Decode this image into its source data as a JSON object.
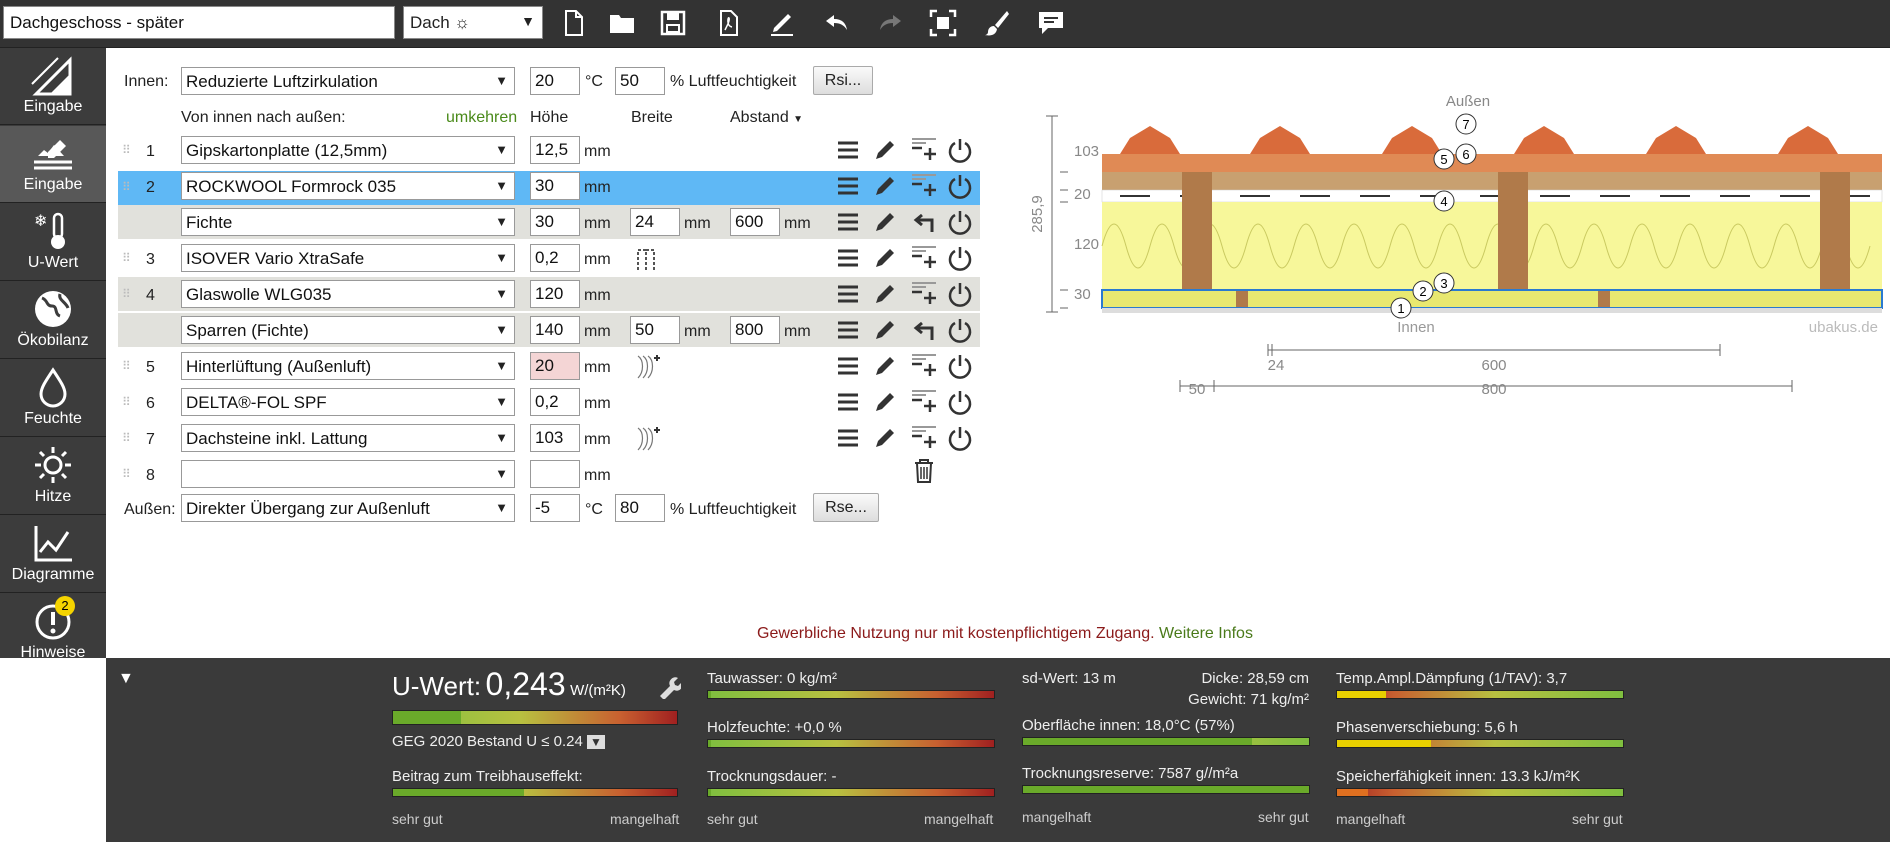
{
  "toolbar": {
    "project_name": "Dachgeschoss - später",
    "view_label": "Dach ☼"
  },
  "sidebar": {
    "items": [
      {
        "label": "Eingabe"
      },
      {
        "label": "Eingabe"
      },
      {
        "label": "U-Wert"
      },
      {
        "label": "Ökobilanz"
      },
      {
        "label": "Feuchte"
      },
      {
        "label": "Hitze"
      },
      {
        "label": "Diagramme"
      },
      {
        "label": "Hinweise",
        "badge": "2"
      }
    ]
  },
  "inner": {
    "label": "Innen:",
    "condition": "Reduzierte Luftzirkulation",
    "temp": "20",
    "temp_unit": "°C",
    "humidity": "50",
    "humidity_label": "% Luftfeuchtigkeit",
    "button": "Rsi..."
  },
  "headers": {
    "direction": "Von innen nach außen:",
    "reverse": "umkehren",
    "height": "Höhe",
    "width": "Breite",
    "distance": "Abstand"
  },
  "layers": [
    {
      "num": "1",
      "material": "Gipskartonplatte (12,5mm)",
      "height": "12,5",
      "unit": "mm"
    },
    {
      "num": "2",
      "material": "ROCKWOOL Formrock 035",
      "height": "30",
      "unit": "mm"
    },
    {
      "num": "",
      "material": "Fichte",
      "height": "30",
      "unit": "mm",
      "width": "24",
      "distance": "600"
    },
    {
      "num": "3",
      "material": "ISOVER Vario XtraSafe",
      "height": "0,2",
      "unit": "mm"
    },
    {
      "num": "4",
      "material": "Glaswolle WLG035",
      "height": "120",
      "unit": "mm"
    },
    {
      "num": "",
      "material": "Sparren (Fichte)",
      "height": "140",
      "unit": "mm",
      "width": "50",
      "distance": "800"
    },
    {
      "num": "5",
      "material": "Hinterlüftung (Außenluft)",
      "height": "20",
      "unit": "mm"
    },
    {
      "num": "6",
      "material": "DELTA®-FOL SPF",
      "height": "0,2",
      "unit": "mm"
    },
    {
      "num": "7",
      "material": "Dachsteine inkl. Lattung",
      "height": "103",
      "unit": "mm"
    },
    {
      "num": "8",
      "material": "",
      "height": "",
      "unit": "mm"
    }
  ],
  "outer": {
    "label": "Außen:",
    "condition": "Direkter Übergang zur Außenluft",
    "temp": "-5",
    "temp_unit": "°C",
    "humidity": "80",
    "humidity_label": "% Luftfeuchtigkeit",
    "button": "Rse..."
  },
  "drawing": {
    "outside": "Außen",
    "inside": "Innen",
    "brand": "ubakus.de",
    "total": "285,9",
    "dims": [
      "103",
      "20",
      "120",
      "30"
    ],
    "width_24": "24",
    "width_600": "600",
    "width_50": "50",
    "width_800": "800",
    "markers": [
      "1",
      "2",
      "3",
      "4",
      "5",
      "6",
      "7"
    ]
  },
  "notice": {
    "text": "Gewerbliche Nutzung nur mit kostenpflichtigem Zugang.",
    "link": "Weitere Infos"
  },
  "results": {
    "uwert_label": "U-Wert:",
    "uwert_value": "0,243",
    "uwert_unit": "W/(m²K)",
    "geg": "GEG 2020 Bestand U ≤ 0.24",
    "treibhaus": "Beitrag zum Treibhauseffekt:",
    "tauwasser": "Tauwasser: 0 kg/m²",
    "holzfeuchte": "Holzfeuchte: +0,0 %",
    "trocknungsdauer": "Trocknungsdauer: -",
    "sdwert": "sd-Wert: 13 m",
    "dicke": "Dicke: 28,59 cm",
    "gewicht": "Gewicht: 71 kg/m²",
    "oberflaeche": "Oberfläche innen: 18,0°C (57%)",
    "trocknungsreserve": "Trocknungsreserve: 7587 g//m²a",
    "tav": "Temp.Ampl.Dämpfung (1/TAV): 3,7",
    "phasen": "Phasenverschiebung: 5,6 h",
    "speicher": "Speicherfähigkeit innen: 13.3 kJ/m²K",
    "scale_good": "sehr gut",
    "scale_bad": "mangelhaft",
    "scale_bad2": "mangelhaft",
    "scale_good2": "sehr gut"
  },
  "colors": {
    "selected_row": "#5fb8f5",
    "alt_row": "#e1e1dc",
    "notice": "#8b1a1a",
    "link": "#4a7a1a",
    "insulation": "#f7f79a"
  }
}
